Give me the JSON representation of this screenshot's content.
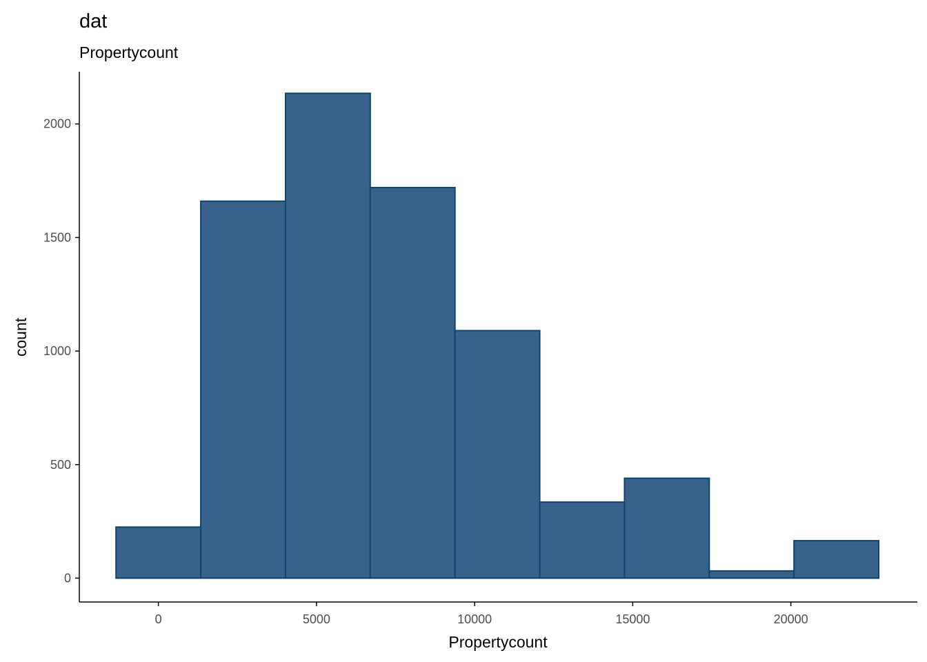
{
  "chart_data": {
    "type": "bar",
    "title": "dat",
    "subtitle": "Propertycount",
    "xlabel": "Propertycount",
    "ylabel": "count",
    "xlim": [
      -2500,
      24000
    ],
    "ylim": [
      -105,
      2230
    ],
    "x_ticks": [
      0,
      5000,
      10000,
      15000,
      20000
    ],
    "y_ticks": [
      0,
      500,
      1000,
      1500,
      2000
    ],
    "bins": [
      {
        "x0": -1340,
        "x1": 1340,
        "count": 225
      },
      {
        "x0": 1340,
        "x1": 4020,
        "count": 1660
      },
      {
        "x0": 4020,
        "x1": 6700,
        "count": 2135
      },
      {
        "x0": 6700,
        "x1": 9380,
        "count": 1720
      },
      {
        "x0": 9380,
        "x1": 12060,
        "count": 1090
      },
      {
        "x0": 12060,
        "x1": 14740,
        "count": 335
      },
      {
        "x0": 14740,
        "x1": 17420,
        "count": 440
      },
      {
        "x0": 17420,
        "x1": 20100,
        "count": 32
      },
      {
        "x0": 20100,
        "x1": 22780,
        "count": 165
      }
    ],
    "fill_color": "#38618c",
    "stroke_color": "#0e456b",
    "grid": false,
    "legend": "none"
  }
}
